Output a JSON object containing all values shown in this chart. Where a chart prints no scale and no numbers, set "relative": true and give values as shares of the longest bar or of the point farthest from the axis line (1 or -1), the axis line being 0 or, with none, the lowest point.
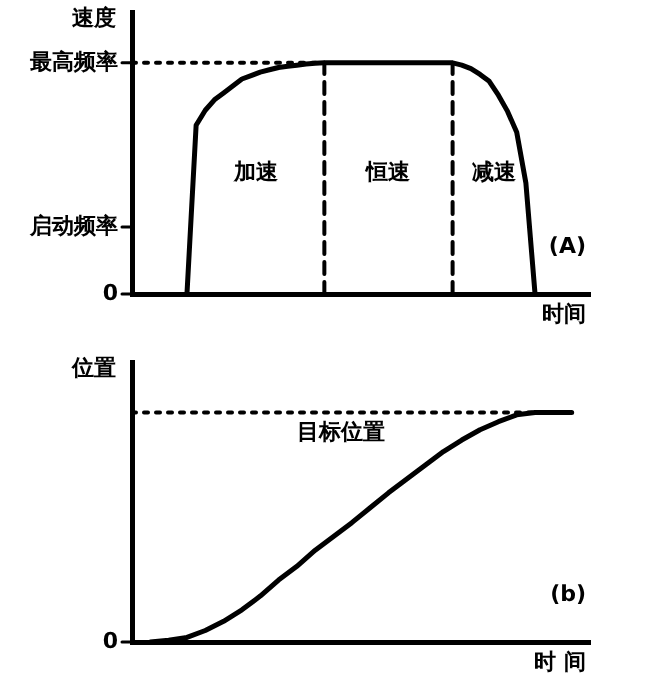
{
  "chart_data": [
    {
      "type": "line",
      "xlabel": "时间",
      "ylabel": "速度",
      "relative": true,
      "legend": false,
      "marker": "none",
      "line_style": "solid",
      "categories": [
        null,
        null,
        null,
        null,
        null,
        null,
        null,
        null,
        null,
        null,
        null,
        null,
        null,
        null,
        null,
        null,
        null,
        null,
        null,
        null,
        null,
        null,
        null,
        null,
        null,
        null,
        null,
        null,
        null,
        null,
        null,
        null,
        null,
        null,
        null,
        null,
        null,
        null,
        null,
        null,
        null,
        null,
        null,
        null,
        null,
        null,
        null,
        null,
        null,
        null,
        null
      ],
      "series": [
        {
          "color": "#000000",
          "values": [
            null,
            null,
            null,
            null,
            null,
            null,
            0,
            0.73,
            0.795,
            0.84,
            0.87,
            0.9,
            0.93,
            0.945,
            0.96,
            0.97,
            0.98,
            0.985,
            0.99,
            0.995,
            0.998,
            1,
            1,
            1,
            1,
            1,
            1,
            1,
            1,
            1,
            1,
            1,
            1,
            1,
            1,
            1,
            0.99,
            0.975,
            0.95,
            0.92,
            0.86,
            0.79,
            0.7,
            0.48,
            0,
            null,
            null,
            null,
            null,
            null,
            null
          ]
        }
      ],
      "ref_lines": [
        {
          "axis": "y",
          "value": 1,
          "label": "最高频率",
          "line_style": "dotted",
          "color": "#000000"
        }
      ],
      "annotations": [
        "启动频率",
        "0",
        "加速",
        "恒速",
        "减速",
        "(A)"
      ]
    },
    {
      "type": "line",
      "xlabel": "时 间",
      "ylabel": "位置",
      "relative": true,
      "legend": false,
      "marker": "none",
      "line_style": "solid",
      "categories": [
        null,
        null,
        null,
        null,
        null,
        null,
        null,
        null,
        null,
        null,
        null,
        null,
        null,
        null,
        null,
        null,
        null,
        null,
        null,
        null,
        null,
        null,
        null,
        null,
        null,
        null
      ],
      "series": [
        {
          "color": "#000000",
          "values": [
            null,
            0,
            0.008,
            0.02,
            0.05,
            0.09,
            0.14,
            0.2,
            0.27,
            0.33,
            0.4,
            0.46,
            0.52,
            0.585,
            0.65,
            0.71,
            0.77,
            0.83,
            0.88,
            0.925,
            0.96,
            0.99,
            1,
            1,
            1,
            null
          ]
        }
      ],
      "ref_lines": [
        {
          "axis": "y",
          "value": 1,
          "label": "目标位置",
          "line_style": "dotted",
          "color": "#000000"
        }
      ],
      "annotations": [
        "0",
        "(b)"
      ]
    }
  ]
}
